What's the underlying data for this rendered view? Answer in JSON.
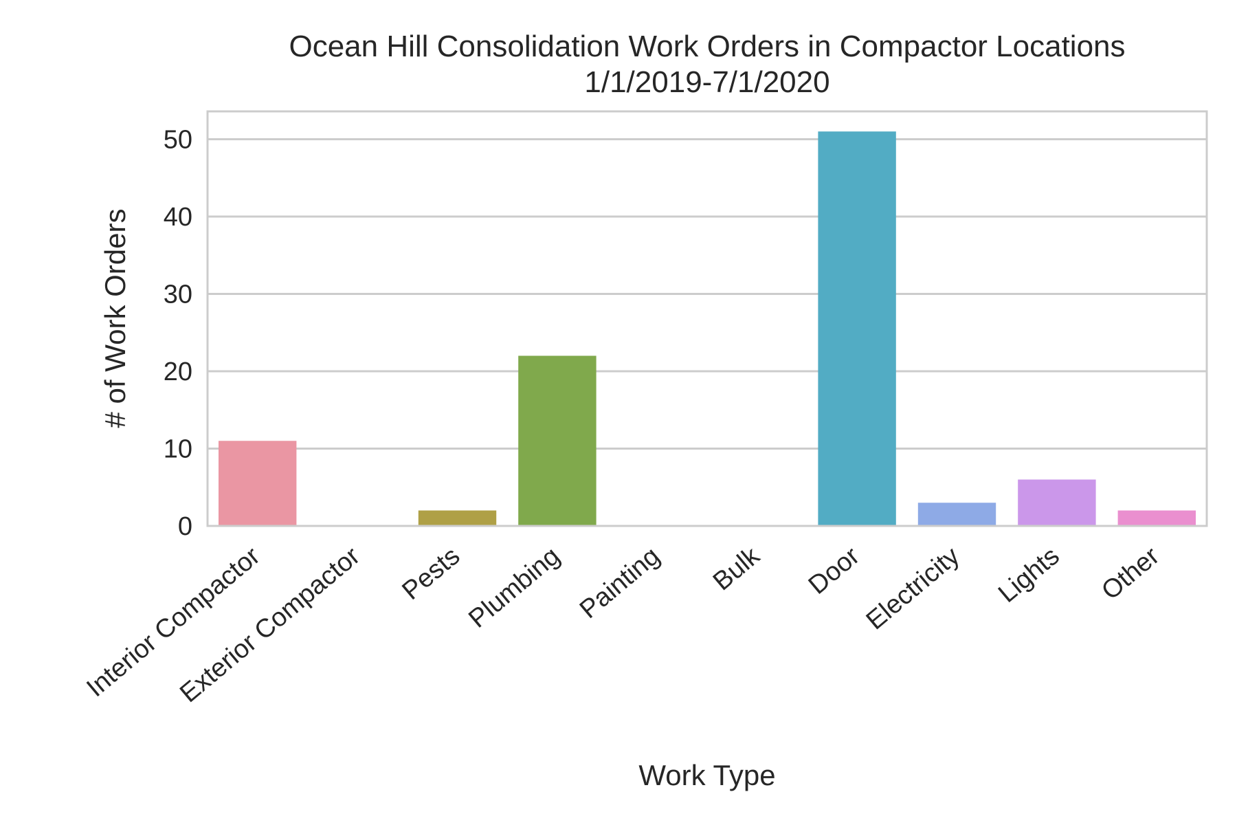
{
  "chart_data": {
    "type": "bar",
    "title": "Ocean Hill Consolidation Work Orders in Compactor Locations",
    "subtitle": "1/1/2019-7/1/2020",
    "xlabel": "Work Type",
    "ylabel": "# of Work Orders",
    "categories": [
      "Interior Compactor",
      "Exterior Compactor",
      "Pests",
      "Plumbing",
      "Painting",
      "Bulk",
      "Door",
      "Electricity",
      "Lights",
      "Other"
    ],
    "values": [
      11,
      0,
      2,
      22,
      0,
      0,
      51,
      3,
      6,
      2
    ],
    "colors": [
      "#ea96a3",
      "#d29b5c",
      "#afa046",
      "#80a94c",
      "#56ad74",
      "#5aab9f",
      "#52acc4",
      "#8eaae6",
      "#cb97ea",
      "#ea8fcf"
    ],
    "ylim": [
      0,
      53.6
    ],
    "yticks": [
      0,
      10,
      20,
      30,
      40,
      50
    ],
    "grid": true,
    "grid_color": "#cccccc",
    "text_color": "#262626"
  }
}
